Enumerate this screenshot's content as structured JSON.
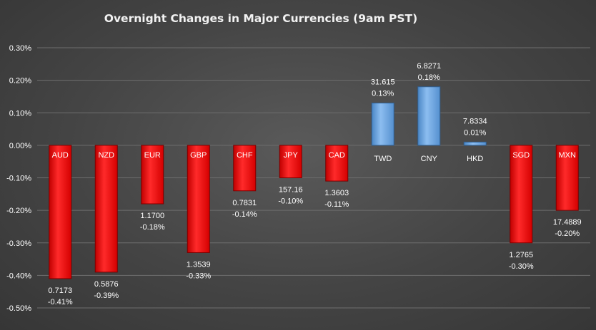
{
  "chart_data": {
    "type": "bar",
    "title": "Overnight Changes in Major Currencies (9am PST)",
    "xlabel": "",
    "ylabel": "",
    "ylim": [
      -0.5,
      0.3
    ],
    "yticks": [
      "0.30%",
      "0.20%",
      "0.10%",
      "0.00%",
      "-0.10%",
      "-0.20%",
      "-0.30%",
      "-0.40%",
      "-0.50%"
    ],
    "grid": true,
    "categories": [
      "AUD",
      "NZD",
      "EUR",
      "GBP",
      "CHF",
      "JPY",
      "CAD",
      "TWD",
      "CNY",
      "HKD",
      "SGD",
      "MXN"
    ],
    "values": [
      -0.41,
      -0.39,
      -0.18,
      -0.33,
      -0.14,
      -0.1,
      -0.11,
      0.13,
      0.18,
      0.01,
      -0.3,
      -0.2
    ],
    "rates": [
      "0.7173",
      "0.5876",
      "1.1700",
      "1.3539",
      "0.7831",
      "157.16",
      "1.3603",
      "31.615",
      "6.8271",
      "7.8334",
      "1.2765",
      "17.4889"
    ],
    "pct_labels": [
      "-0.41%",
      "-0.39%",
      "-0.18%",
      "-0.33%",
      "-0.14%",
      "-0.10%",
      "-0.11%",
      "0.13%",
      "0.18%",
      "0.01%",
      "-0.30%",
      "-0.20%"
    ],
    "colors": {
      "negative": "#ff0000",
      "positive": "#5b9bd5"
    }
  }
}
